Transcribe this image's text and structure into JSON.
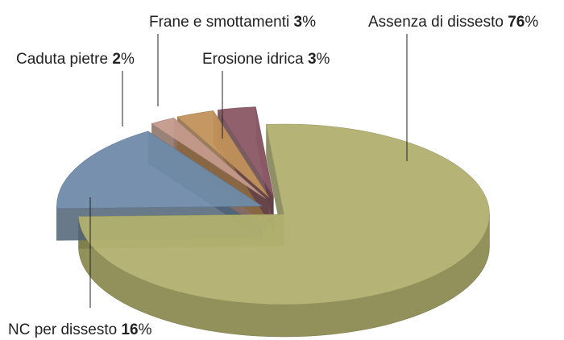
{
  "chart_data": {
    "type": "pie3d",
    "categories": [
      "Assenza di dissesto",
      "NC per dissesto",
      "Caduta pietre",
      "Frane e smottamenti",
      "Erosione idrica"
    ],
    "values": [
      76,
      16,
      2,
      3,
      3
    ],
    "unit": "%",
    "colors": [
      "#b2b16f",
      "#6f8ba9",
      "#c49a8c",
      "#c2925a",
      "#8c5866"
    ]
  }
}
